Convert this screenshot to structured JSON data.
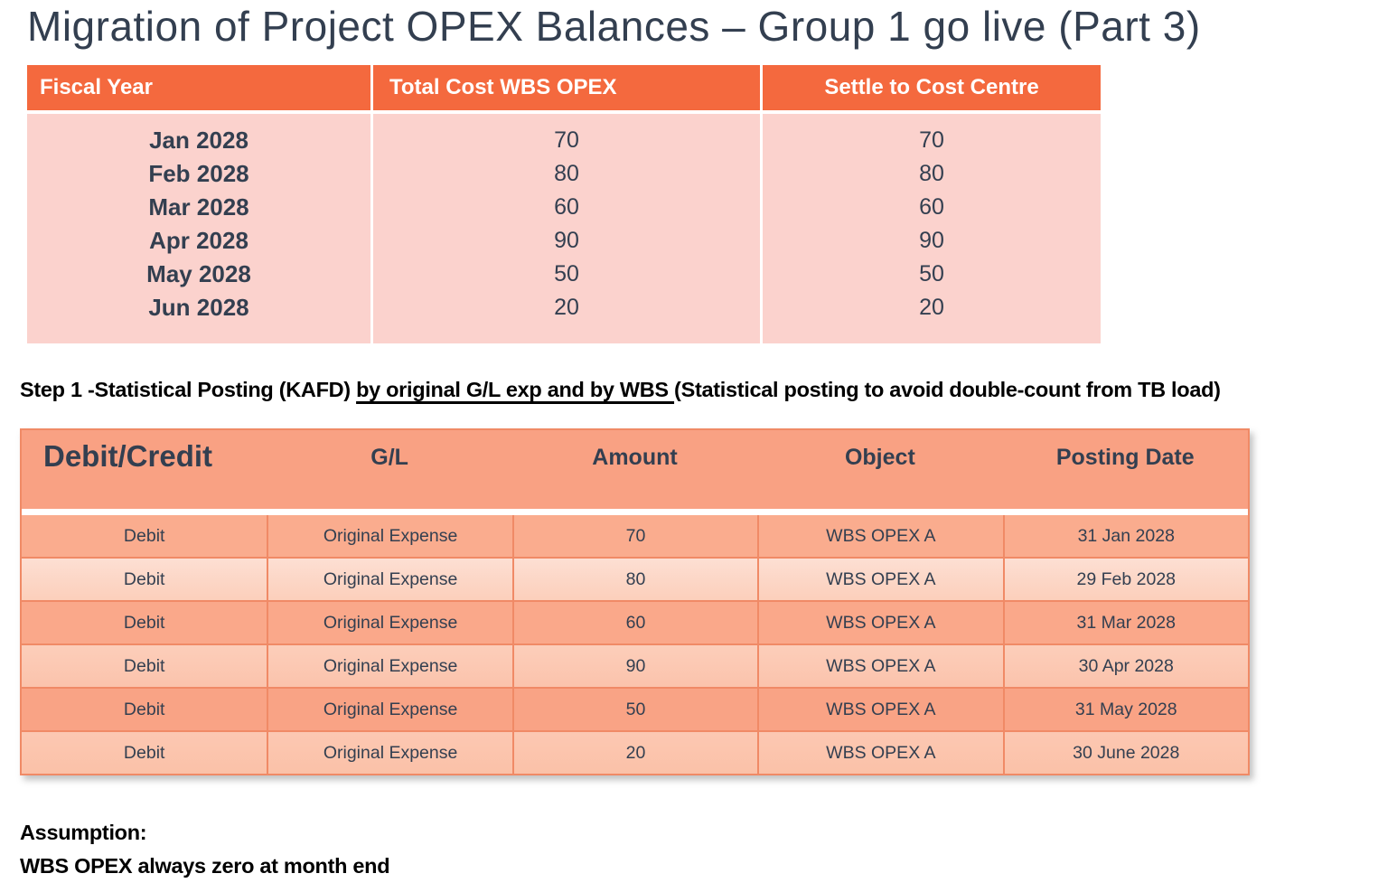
{
  "title": "Migration of Project OPEX Balances – Group 1 go live (Part 3)",
  "summary_table": {
    "headers": [
      "Fiscal Year",
      "Total Cost WBS OPEX",
      "Settle to Cost Centre"
    ],
    "rows": [
      [
        "Jan 2028",
        "70",
        "70"
      ],
      [
        "Feb 2028",
        "80",
        "80"
      ],
      [
        "Mar 2028",
        "60",
        "60"
      ],
      [
        "Apr 2028",
        "90",
        "90"
      ],
      [
        "May 2028",
        "50",
        "50"
      ],
      [
        "Jun 2028",
        "20",
        "20"
      ]
    ]
  },
  "step_text": {
    "prefix": "Step 1 -Statistical Posting (KAFD) ",
    "underlined": "by original G/L exp and by WBS ",
    "suffix": "(Statistical posting to avoid double-count from TB load)"
  },
  "posting_table": {
    "headers": [
      "Debit/Credit",
      "G/L",
      "Amount",
      "Object",
      "Posting Date"
    ],
    "rows": [
      [
        "Debit",
        "Original Expense",
        "70",
        "WBS OPEX A",
        "31 Jan 2028"
      ],
      [
        "Debit",
        "Original Expense",
        "80",
        "WBS OPEX A",
        "29 Feb 2028"
      ],
      [
        "Debit",
        "Original Expense",
        "60",
        "WBS OPEX A",
        "31 Mar 2028"
      ],
      [
        "Debit",
        "Original Expense",
        "90",
        "WBS OPEX A",
        "30 Apr 2028"
      ],
      [
        "Debit",
        "Original Expense",
        "50",
        "WBS OPEX A",
        "31 May 2028"
      ],
      [
        "Debit",
        "Original Expense",
        "20",
        "WBS OPEX A",
        "30 June 2028"
      ]
    ]
  },
  "assumption": {
    "label": "Assumption:",
    "text": "WBS OPEX always zero at month end"
  },
  "colors": {
    "title_text": "#333F50",
    "table1_header_bg": "#F4693E",
    "table1_header_text": "#FFFFFF",
    "table1_body_bg": "#FBD2CD",
    "table2_header_bg": "#F9A183",
    "table2_row_dark": "#FAAC8E",
    "table2_row_light": "#FCCFBB",
    "table2_border": "#F08A66",
    "body_text": "#333F50",
    "note_text": "#000000"
  }
}
